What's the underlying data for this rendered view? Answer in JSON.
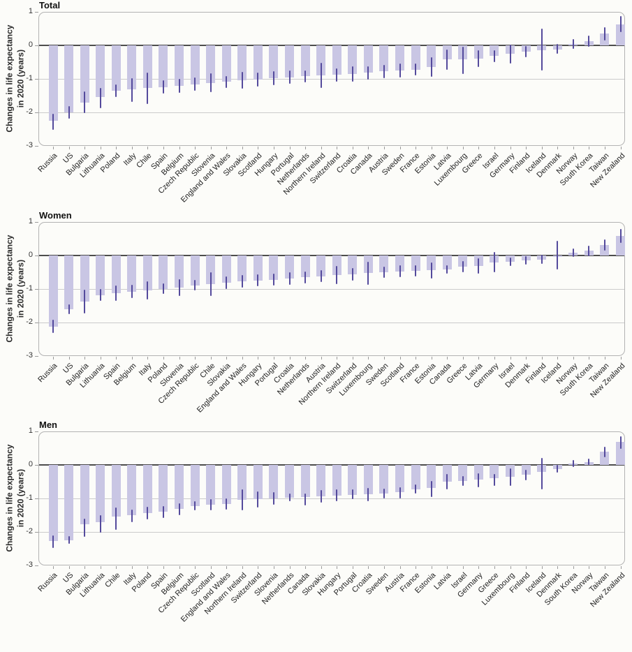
{
  "figure": {
    "ylabel_line1": "Changes in life expectancy",
    "ylabel_line2": "in 2020 (years)",
    "colors": {
      "bar_fill": "#c9c6e4",
      "error_bar": "#544a9c",
      "zero_line": "#4d4d4d",
      "gridline": "#cbcbcb",
      "panel_border": "#b3b3b3",
      "background": "#fcfcf9"
    }
  },
  "chart_data": [
    {
      "type": "bar",
      "title": "Total",
      "ylabel": "Changes in life expectancy in 2020 (years)",
      "ylim": [
        -3,
        1
      ],
      "yticks": [
        1,
        0,
        -1,
        -2,
        -3
      ],
      "grid": true,
      "error_bars": true,
      "categories": [
        "Russia",
        "US",
        "Bulgaria",
        "Lithuania",
        "Poland",
        "Italy",
        "Chile",
        "Spain",
        "Belgium",
        "Czech Republic",
        "Slovenia",
        "England and Wales",
        "Slovakia",
        "Scotland",
        "Hungary",
        "Portugal",
        "Netherlands",
        "Northern Ireland",
        "Switzerland",
        "Croatia",
        "Canada",
        "Austria",
        "Sweden",
        "France",
        "Estonia",
        "Latvia",
        "Luxembourg",
        "Greece",
        "Israel",
        "Germany",
        "Finland",
        "Iceland",
        "Denmark",
        "Norway",
        "South Korea",
        "Taiwan",
        "New Zealand"
      ],
      "values": [
        -2.25,
        -2.0,
        -1.7,
        -1.55,
        -1.35,
        -1.32,
        -1.28,
        -1.24,
        -1.2,
        -1.16,
        -1.12,
        -1.09,
        -1.05,
        -1.02,
        -0.98,
        -0.95,
        -0.92,
        -0.9,
        -0.88,
        -0.85,
        -0.82,
        -0.78,
        -0.75,
        -0.72,
        -0.65,
        -0.42,
        -0.41,
        -0.39,
        -0.32,
        -0.25,
        -0.18,
        -0.14,
        -0.12,
        0.04,
        0.12,
        0.35,
        0.63
      ],
      "ci_high": [
        -2.05,
        -1.82,
        -1.38,
        -1.28,
        -1.16,
        -0.98,
        -0.82,
        -1.04,
        -1.0,
        -0.96,
        -0.84,
        -0.91,
        -0.8,
        -0.82,
        -0.78,
        -0.75,
        -0.74,
        -0.52,
        -0.68,
        -0.62,
        -0.62,
        -0.58,
        -0.55,
        -0.54,
        -0.36,
        -0.12,
        -0.05,
        -0.14,
        -0.14,
        0.02,
        -0.02,
        0.5,
        0.04,
        0.18,
        0.3,
        0.55,
        0.87
      ],
      "ci_low": [
        -2.52,
        -2.18,
        -2.02,
        -1.88,
        -1.54,
        -1.68,
        -1.74,
        -1.44,
        -1.42,
        -1.36,
        -1.4,
        -1.28,
        -1.3,
        -1.22,
        -1.18,
        -1.15,
        -1.1,
        -1.28,
        -1.08,
        -1.08,
        -1.02,
        -0.98,
        -0.95,
        -0.9,
        -0.94,
        -0.72,
        -0.85,
        -0.64,
        -0.5,
        -0.55,
        -0.36,
        -0.74,
        -0.26,
        -0.1,
        -0.05,
        0.14,
        0.4
      ]
    },
    {
      "type": "bar",
      "title": "Women",
      "ylabel": "Changes in life expectancy in 2020 (years)",
      "ylim": [
        -3,
        1
      ],
      "yticks": [
        1,
        0,
        -1,
        -2,
        -3
      ],
      "grid": true,
      "error_bars": true,
      "categories": [
        "Russia",
        "US",
        "Bulgaria",
        "Lithuania",
        "Spain",
        "Belgium",
        "Italy",
        "Poland",
        "Slovenia",
        "Czech Republic",
        "Chile",
        "Slovakia",
        "England and Wales",
        "Hungary",
        "Portugal",
        "Croatia",
        "Netherlands",
        "Austria",
        "Northern Ireland",
        "Switzerland",
        "Luxembourg",
        "Sweden",
        "Scotland",
        "France",
        "Estonia",
        "Canada",
        "Greece",
        "Latvia",
        "Germany",
        "Israel",
        "Denmark",
        "Finland",
        "Iceland",
        "Norway",
        "South Korea",
        "Taiwan",
        "New Zealand"
      ],
      "values": [
        -2.12,
        -1.6,
        -1.37,
        -1.18,
        -1.13,
        -1.08,
        -1.05,
        -0.99,
        -0.95,
        -0.89,
        -0.85,
        -0.82,
        -0.77,
        -0.74,
        -0.72,
        -0.69,
        -0.65,
        -0.62,
        -0.59,
        -0.56,
        -0.53,
        -0.5,
        -0.47,
        -0.46,
        -0.44,
        -0.42,
        -0.33,
        -0.31,
        -0.2,
        -0.19,
        -0.15,
        -0.12,
        -0.04,
        0.08,
        0.14,
        0.31,
        0.58
      ],
      "ci_high": [
        -1.92,
        -1.46,
        -1.02,
        -1.0,
        -0.9,
        -0.88,
        -0.78,
        -0.84,
        -0.7,
        -0.73,
        -0.5,
        -0.63,
        -0.59,
        -0.56,
        -0.54,
        -0.5,
        -0.47,
        -0.44,
        -0.32,
        -0.38,
        -0.18,
        -0.33,
        -0.29,
        -0.29,
        -0.2,
        -0.3,
        -0.16,
        -0.08,
        0.1,
        -0.07,
        -0.02,
        0.02,
        0.44,
        0.2,
        0.3,
        0.48,
        0.79
      ],
      "ci_low": [
        -2.32,
        -1.74,
        -1.72,
        -1.36,
        -1.36,
        -1.28,
        -1.32,
        -1.14,
        -1.2,
        -1.05,
        -1.2,
        -1.01,
        -0.95,
        -0.92,
        -0.9,
        -0.88,
        -0.83,
        -0.8,
        -0.86,
        -0.74,
        -0.88,
        -0.67,
        -0.65,
        -0.63,
        -0.68,
        -0.54,
        -0.5,
        -0.54,
        -0.5,
        -0.31,
        -0.28,
        -0.26,
        -0.42,
        -0.04,
        -0.02,
        0.14,
        0.37
      ]
    },
    {
      "type": "bar",
      "title": "Men",
      "ylabel": "Changes in life expectancy in 2020 (years)",
      "ylim": [
        -3,
        1
      ],
      "yticks": [
        1,
        0,
        -1,
        -2,
        -3
      ],
      "grid": true,
      "error_bars": true,
      "categories": [
        "Russia",
        "US",
        "Bulgaria",
        "Lithuania",
        "Chile",
        "Italy",
        "Poland",
        "Spain",
        "Belgium",
        "Czech Republic",
        "Scotland",
        "England and Wales",
        "Northern Ireland",
        "Switzerland",
        "Slovenia",
        "Netherlands",
        "Canada",
        "Slovakia",
        "Hungary",
        "Portugal",
        "Croatia",
        "Sweden",
        "Austria",
        "France",
        "Estonia",
        "Latvia",
        "Israel",
        "Germany",
        "Greece",
        "Luxembourg",
        "Finland",
        "Iceland",
        "Denmark",
        "South Korea",
        "Norway",
        "Taiwan",
        "New Zealand"
      ],
      "values": [
        -2.28,
        -2.24,
        -1.78,
        -1.7,
        -1.54,
        -1.49,
        -1.44,
        -1.4,
        -1.31,
        -1.22,
        -1.19,
        -1.17,
        -1.05,
        -1.02,
        -0.99,
        -0.97,
        -0.95,
        -0.94,
        -0.92,
        -0.89,
        -0.87,
        -0.86,
        -0.82,
        -0.72,
        -0.68,
        -0.5,
        -0.48,
        -0.44,
        -0.4,
        -0.35,
        -0.3,
        -0.21,
        -0.12,
        0.04,
        0.09,
        0.39,
        0.68
      ],
      "ci_high": [
        -2.1,
        -2.12,
        -1.6,
        -1.49,
        -1.28,
        -1.33,
        -1.26,
        -1.22,
        -1.15,
        -1.08,
        -1.03,
        -1.0,
        -0.73,
        -0.8,
        -0.82,
        -0.85,
        -0.86,
        -0.75,
        -0.73,
        -0.73,
        -0.68,
        -0.7,
        -0.66,
        -0.59,
        -0.47,
        -0.28,
        -0.34,
        -0.26,
        -0.28,
        -0.1,
        -0.15,
        0.2,
        0.0,
        0.14,
        0.18,
        0.55,
        0.85
      ],
      "ci_low": [
        -2.48,
        -2.36,
        -2.14,
        -2.02,
        -1.94,
        -1.7,
        -1.62,
        -1.58,
        -1.49,
        -1.36,
        -1.35,
        -1.33,
        -1.35,
        -1.28,
        -1.18,
        -1.08,
        -1.2,
        -1.13,
        -1.08,
        -1.03,
        -1.08,
        -1.0,
        -0.99,
        -0.86,
        -0.96,
        -0.72,
        -0.62,
        -0.66,
        -0.63,
        -0.62,
        -0.45,
        -0.73,
        -0.23,
        -0.07,
        0.0,
        0.23,
        0.48
      ]
    }
  ]
}
